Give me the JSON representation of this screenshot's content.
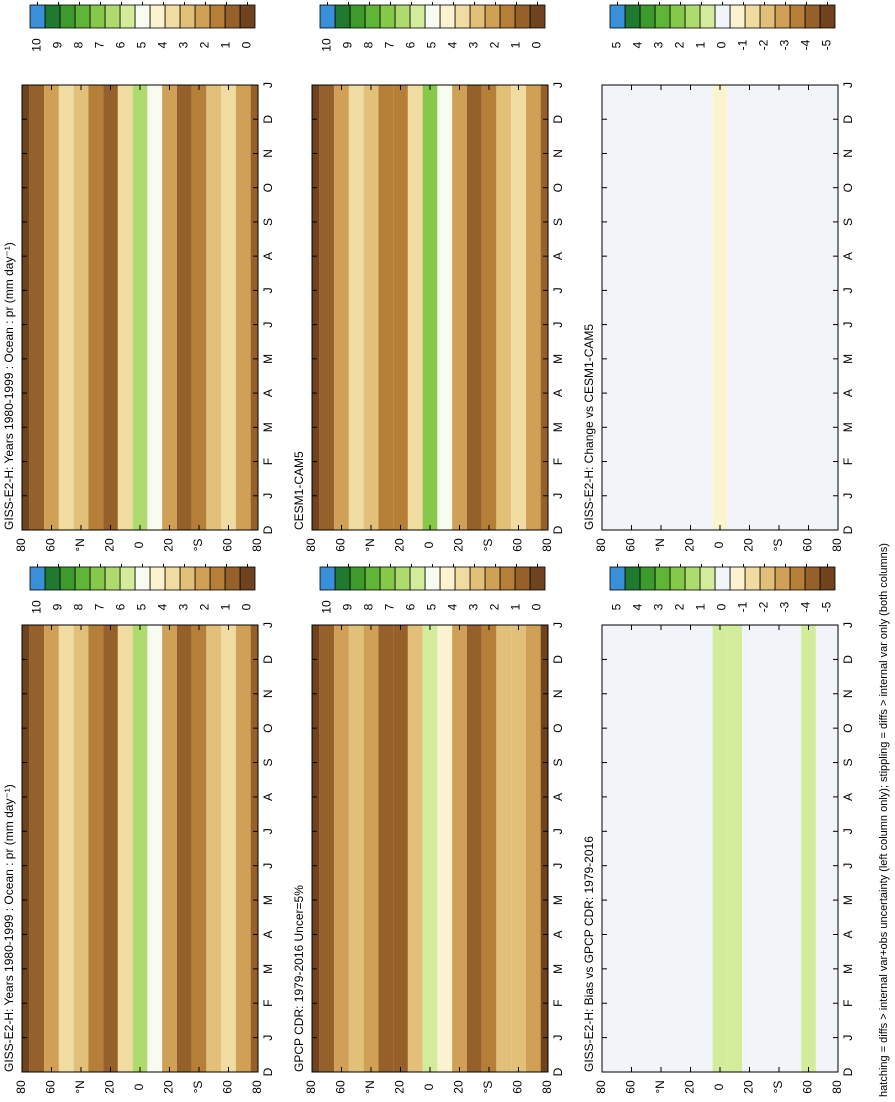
{
  "chart_data": [
    {
      "type": "heatmap",
      "title": "GISS-E2-H: Years 1980-1999 : Ocean : pr (mm day⁻¹)",
      "categories": [
        "D",
        "J",
        "F",
        "M",
        "A",
        "M",
        "J",
        "J",
        "A",
        "S",
        "O",
        "N",
        "D",
        "J"
      ],
      "x": [
        80,
        70,
        60,
        50,
        40,
        30,
        20,
        10,
        0,
        -10,
        -20,
        -30,
        -40,
        -50,
        -60,
        -70,
        -80
      ],
      "values": [
        0.6,
        1.2,
        2.2,
        3.5,
        2.8,
        1.5,
        1.2,
        3.5,
        6.2,
        5.0,
        2.5,
        1.2,
        1.5,
        2.8,
        3.6,
        2.2,
        0.8
      ],
      "xlim": [
        80,
        -80
      ],
      "xticks": [
        80,
        60,
        {
          "value": 40,
          "label": "°N"
        },
        20,
        0,
        {
          "value": -20,
          "label": "20"
        },
        {
          "value": -40,
          "label": "°S"
        },
        {
          "value": -60,
          "label": "60"
        },
        {
          "value": -80,
          "label": "80"
        }
      ],
      "clim": [
        0,
        10
      ],
      "cticks": [
        10,
        9,
        8,
        7,
        6,
        5,
        4,
        3,
        2,
        1,
        0
      ],
      "colors": [
        "#6e431d",
        "#96602a",
        "#b57f38",
        "#cfa055",
        "#e2c07a",
        "#f0dca0",
        "#fbf3d0",
        "#f7fbf0",
        "#d3ec9c",
        "#aedb6e",
        "#86c94a",
        "#5fb536",
        "#3d9a2c",
        "#1f7a2f",
        "#3a8fd9"
      ]
    },
    {
      "type": "heatmap",
      "title": "CESM1-CAM5",
      "categories": [
        "D",
        "J",
        "F",
        "M",
        "A",
        "M",
        "J",
        "J",
        "A",
        "S",
        "O",
        "N",
        "D",
        "J"
      ],
      "x": [
        80,
        70,
        60,
        50,
        40,
        30,
        20,
        10,
        0,
        -10,
        -20,
        -30,
        -40,
        -50,
        -60,
        -70,
        -80
      ],
      "values": [
        0.6,
        1.3,
        2.4,
        3.7,
        3.0,
        1.6,
        1.4,
        3.8,
        6.8,
        5.2,
        2.6,
        1.3,
        1.6,
        3.0,
        3.8,
        2.4,
        0.9
      ],
      "xlim": [
        80,
        -80
      ],
      "xticks": [
        80,
        60,
        {
          "value": 40,
          "label": "°N"
        },
        20,
        0,
        {
          "value": -20,
          "label": "20"
        },
        {
          "value": -40,
          "label": "°S"
        },
        {
          "value": -60,
          "label": "60"
        },
        {
          "value": -80,
          "label": "80"
        }
      ],
      "clim": [
        0,
        10
      ],
      "cticks": [
        10,
        9,
        8,
        7,
        6,
        5,
        4,
        3,
        2,
        1,
        0
      ],
      "colors": [
        "#6e431d",
        "#96602a",
        "#b57f38",
        "#cfa055",
        "#e2c07a",
        "#f0dca0",
        "#fbf3d0",
        "#f7fbf0",
        "#d3ec9c",
        "#aedb6e",
        "#86c94a",
        "#5fb536",
        "#3d9a2c",
        "#1f7a2f",
        "#3a8fd9"
      ]
    },
    {
      "type": "heatmap",
      "title": "GISS-E2-H: Change vs CESM1-CAM5",
      "categories": [
        "D",
        "J",
        "F",
        "M",
        "A",
        "M",
        "J",
        "J",
        "A",
        "S",
        "O",
        "N",
        "D",
        "J"
      ],
      "x": [
        80,
        70,
        60,
        50,
        40,
        30,
        20,
        10,
        0,
        -10,
        -20,
        -30,
        -40,
        -50,
        -60,
        -70,
        -80
      ],
      "values": [
        0,
        -0.1,
        -0.2,
        -0.2,
        -0.2,
        -0.1,
        -0.2,
        -0.3,
        -0.6,
        -0.2,
        -0.1,
        -0.1,
        -0.1,
        -0.2,
        -0.2,
        -0.2,
        -0.1
      ],
      "xlim": [
        80,
        -80
      ],
      "xticks": [
        80,
        60,
        {
          "value": 40,
          "label": "°N"
        },
        20,
        0,
        {
          "value": -20,
          "label": "20"
        },
        {
          "value": -40,
          "label": "°S"
        },
        {
          "value": -60,
          "label": "60"
        },
        {
          "value": -80,
          "label": "80"
        }
      ],
      "clim": [
        -5,
        5
      ],
      "cticks": [
        5,
        4,
        3,
        2,
        1,
        0,
        -1,
        -2,
        -3,
        -4,
        -5
      ],
      "colors": [
        "#6e431d",
        "#96602a",
        "#b57f38",
        "#cfa055",
        "#e2c07a",
        "#f0dca0",
        "#fbf3d0",
        "#f1f4f8",
        "#d3ec9c",
        "#aedb6e",
        "#86c94a",
        "#5fb536",
        "#3d9a2c",
        "#1f7a2f",
        "#3a8fd9"
      ]
    },
    {
      "type": "heatmap",
      "title": "GISS-E2-H: Years 1980-1999 : Ocean : pr (mm day⁻¹)",
      "categories": [
        "D",
        "J",
        "F",
        "M",
        "A",
        "M",
        "J",
        "J",
        "A",
        "S",
        "O",
        "N",
        "D",
        "J"
      ],
      "x": [
        80,
        70,
        60,
        50,
        40,
        30,
        20,
        10,
        0,
        -10,
        -20,
        -30,
        -40,
        -50,
        -60,
        -70,
        -80
      ],
      "values": [
        0.6,
        1.2,
        2.2,
        3.5,
        2.8,
        1.5,
        1.2,
        3.5,
        6.2,
        5.0,
        2.5,
        1.2,
        1.5,
        2.8,
        3.6,
        2.2,
        0.8
      ],
      "xlim": [
        80,
        -80
      ],
      "xticks": [
        80,
        60,
        {
          "value": 40,
          "label": "°N"
        },
        20,
        0,
        {
          "value": -20,
          "label": "20"
        },
        {
          "value": -40,
          "label": "°S"
        },
        {
          "value": -60,
          "label": "60"
        },
        {
          "value": -80,
          "label": "80"
        }
      ],
      "clim": [
        0,
        10
      ],
      "cticks": [
        10,
        9,
        8,
        7,
        6,
        5,
        4,
        3,
        2,
        1,
        0
      ],
      "colors": [
        "#6e431d",
        "#96602a",
        "#b57f38",
        "#cfa055",
        "#e2c07a",
        "#f0dca0",
        "#fbf3d0",
        "#f7fbf0",
        "#d3ec9c",
        "#aedb6e",
        "#86c94a",
        "#5fb536",
        "#3d9a2c",
        "#1f7a2f",
        "#3a8fd9"
      ]
    },
    {
      "type": "heatmap",
      "title": "GPCP CDR: 1979-2016 Uncer=5%",
      "categories": [
        "D",
        "J",
        "F",
        "M",
        "A",
        "M",
        "J",
        "J",
        "A",
        "S",
        "O",
        "N",
        "D",
        "J"
      ],
      "x": [
        80,
        70,
        60,
        50,
        40,
        30,
        20,
        10,
        0,
        -10,
        -20,
        -30,
        -40,
        -50,
        -60,
        -70,
        -80
      ],
      "values": [
        0.4,
        1.0,
        2.1,
        3.2,
        2.6,
        1.3,
        1.1,
        3.3,
        5.4,
        4.2,
        2.2,
        1.0,
        1.4,
        2.7,
        3.2,
        2.1,
        0.6
      ],
      "xlim": [
        80,
        -80
      ],
      "xticks": [
        80,
        60,
        {
          "value": 40,
          "label": "°N"
        },
        20,
        0,
        {
          "value": -20,
          "label": "20"
        },
        {
          "value": -40,
          "label": "°S"
        },
        {
          "value": -60,
          "label": "60"
        },
        {
          "value": -80,
          "label": "80"
        }
      ],
      "clim": [
        0,
        10
      ],
      "cticks": [
        10,
        9,
        8,
        7,
        6,
        5,
        4,
        3,
        2,
        1,
        0
      ],
      "colors": [
        "#6e431d",
        "#96602a",
        "#b57f38",
        "#cfa055",
        "#e2c07a",
        "#f0dca0",
        "#fbf3d0",
        "#f7fbf0",
        "#d3ec9c",
        "#aedb6e",
        "#86c94a",
        "#5fb536",
        "#3d9a2c",
        "#1f7a2f",
        "#3a8fd9"
      ]
    },
    {
      "type": "heatmap",
      "title": "GISS-E2-H: Bias vs GPCP CDR: 1979-2016",
      "categories": [
        "D",
        "J",
        "F",
        "M",
        "A",
        "M",
        "J",
        "J",
        "A",
        "S",
        "O",
        "N",
        "D",
        "J"
      ],
      "x": [
        80,
        70,
        60,
        50,
        40,
        30,
        20,
        10,
        0,
        -10,
        -20,
        -30,
        -40,
        -50,
        -60,
        -70,
        -80
      ],
      "values": [
        0.2,
        0.2,
        0.1,
        0.3,
        0.2,
        0.2,
        0.1,
        0.2,
        0.8,
        0.8,
        0.3,
        0.2,
        0.1,
        0.1,
        0.4,
        0.1,
        0.2
      ],
      "xlim": [
        80,
        -80
      ],
      "xticks": [
        80,
        60,
        {
          "value": 40,
          "label": "°N"
        },
        20,
        0,
        {
          "value": -20,
          "label": "20"
        },
        {
          "value": -40,
          "label": "°S"
        },
        {
          "value": -60,
          "label": "60"
        },
        {
          "value": -80,
          "label": "80"
        }
      ],
      "clim": [
        -5,
        5
      ],
      "cticks": [
        5,
        4,
        3,
        2,
        1,
        0,
        -1,
        -2,
        -3,
        -4,
        -5
      ],
      "colors": [
        "#6e431d",
        "#96602a",
        "#b57f38",
        "#cfa055",
        "#e2c07a",
        "#f0dca0",
        "#fbf3d0",
        "#f1f4f8",
        "#d3ec9c",
        "#aedb6e",
        "#86c94a",
        "#5fb536",
        "#3d9a2c",
        "#1f7a2f",
        "#3a8fd9"
      ]
    }
  ],
  "footnote": "hatching = diffs > internal var+obs uncertainty (left column only); stippling = diffs > internal var only (both columns)"
}
